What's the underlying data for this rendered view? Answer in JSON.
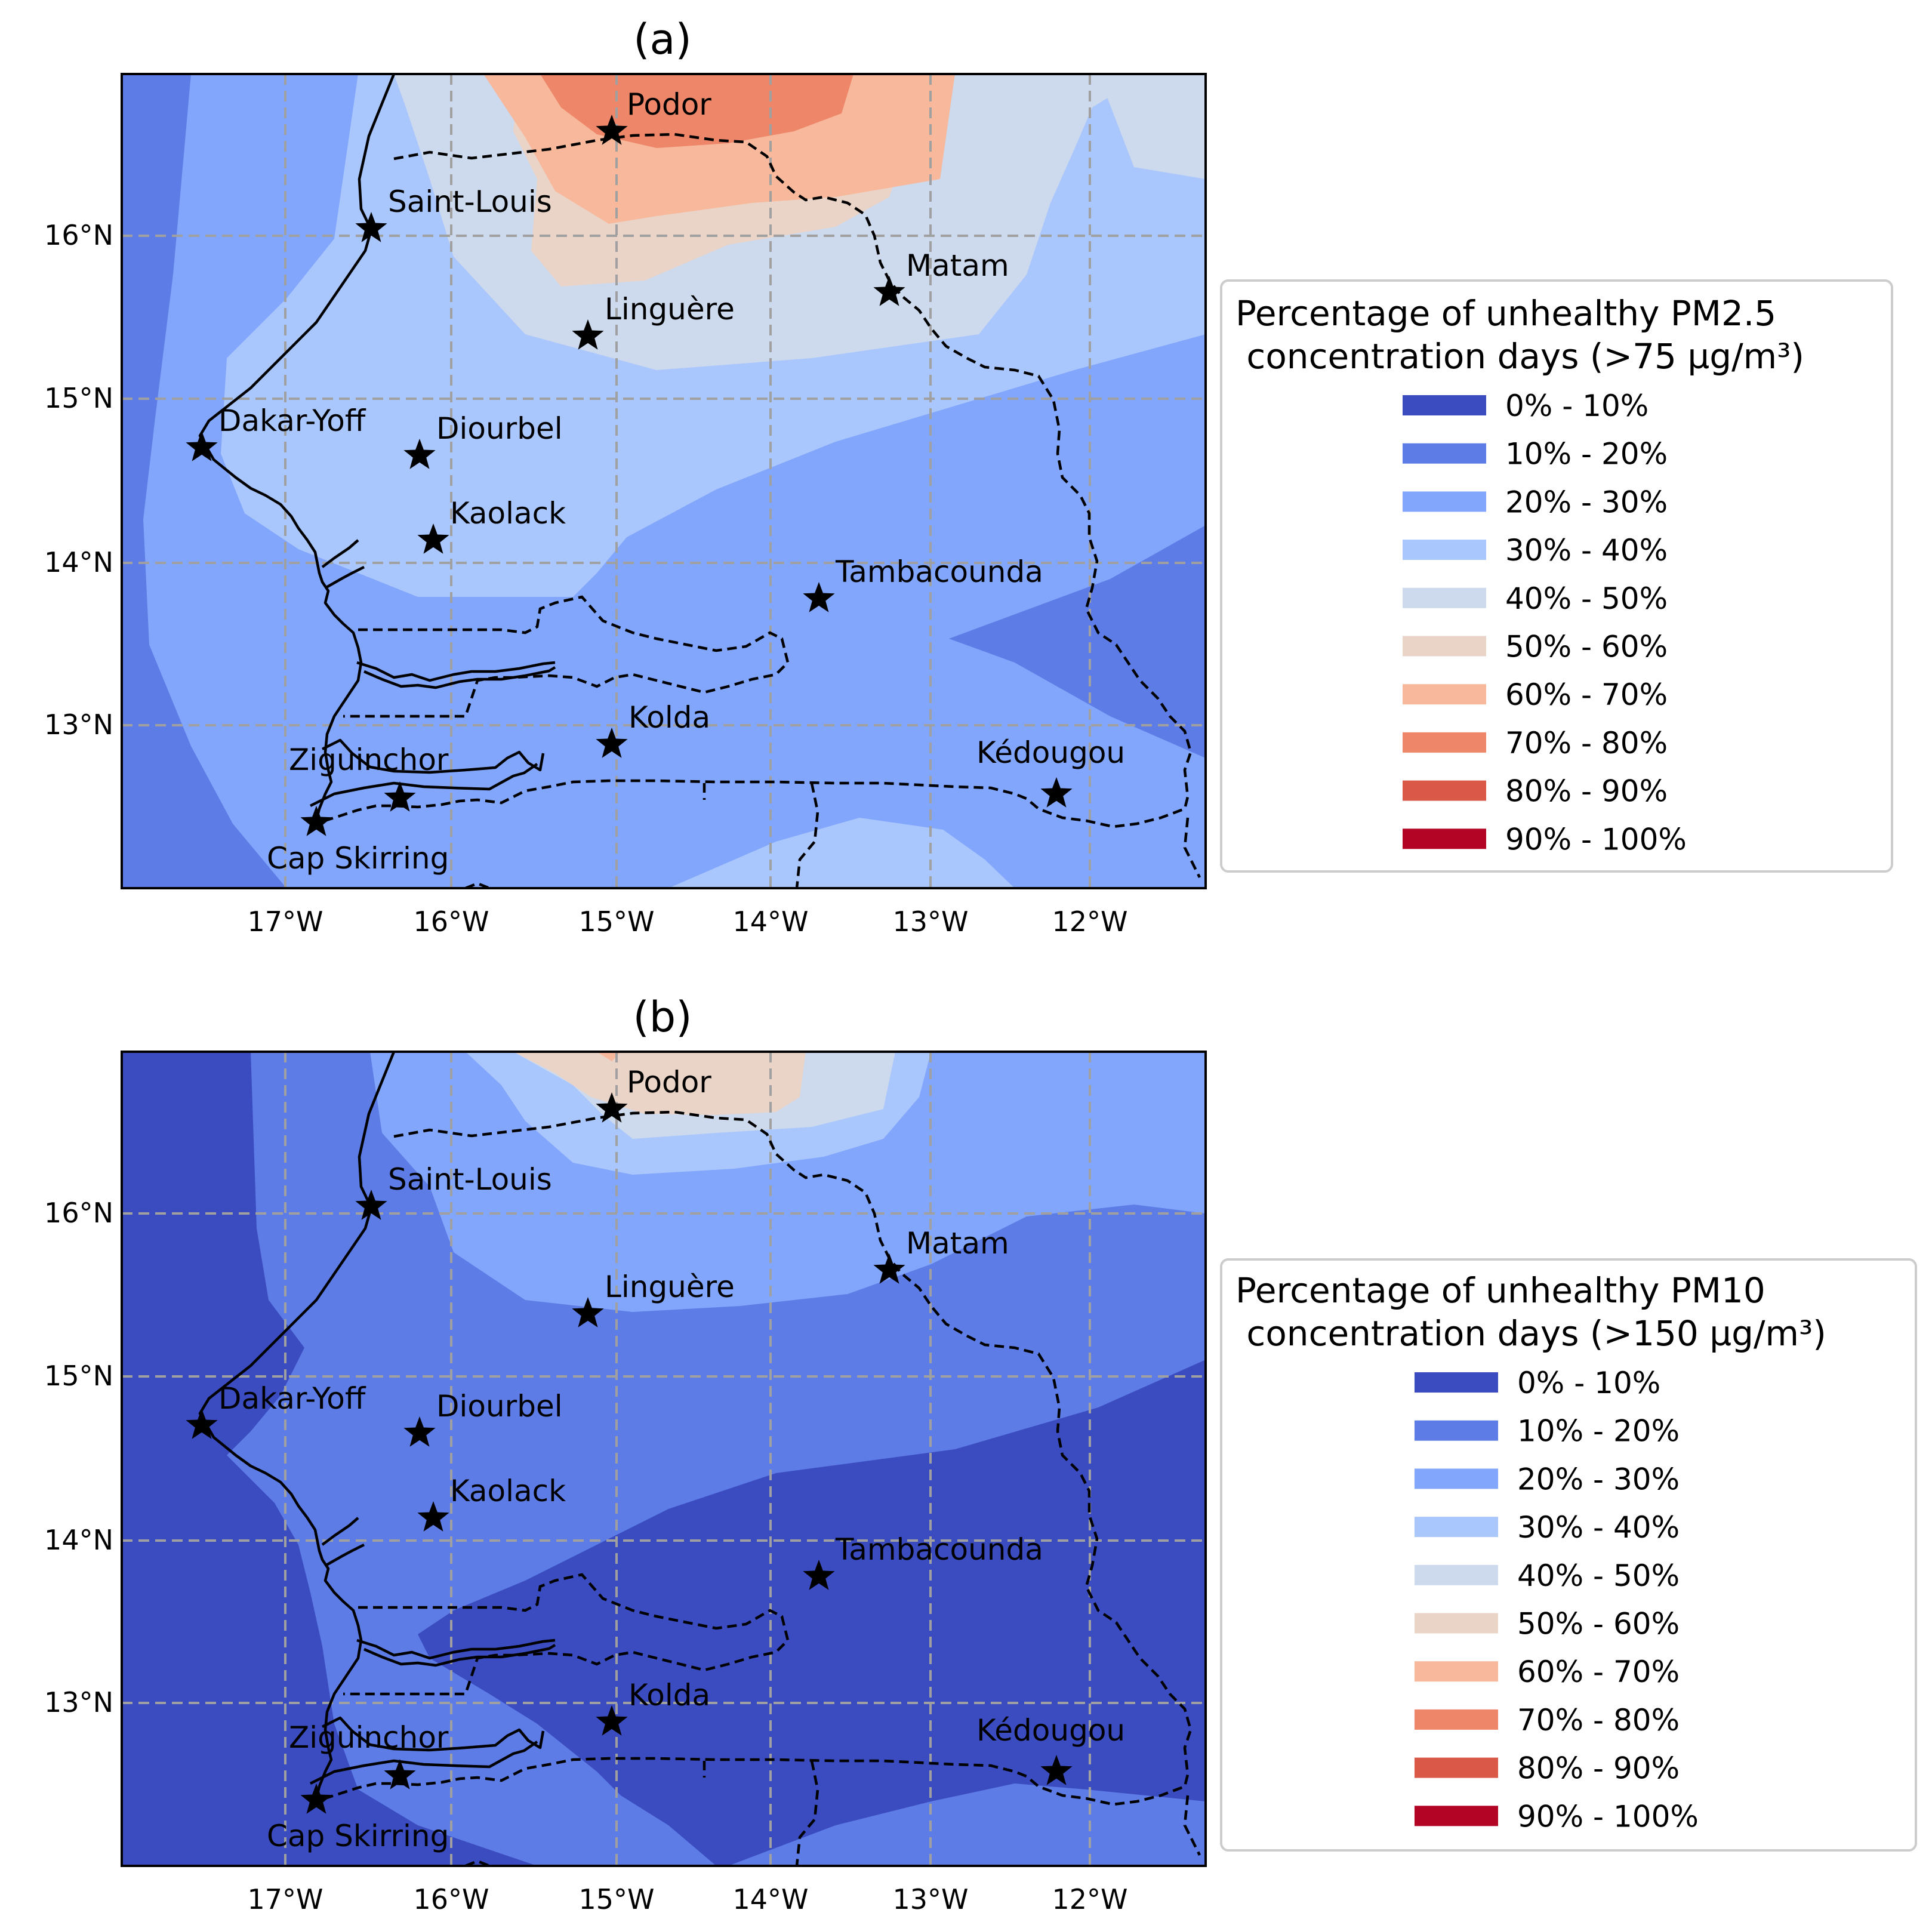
{
  "colors": [
    "#3b4cc0",
    "#5d7ce6",
    "#82a6fb",
    "#aac7fd",
    "#cdd9ec",
    "#ead4c8",
    "#f7b89c",
    "#ee8669",
    "#d95847",
    "#b40426"
  ],
  "lon_ticks": [
    "17°W",
    "16°W",
    "15°W",
    "14°W",
    "13°W",
    "12°W"
  ],
  "lat_ticks": [
    "16°N",
    "15°N",
    "14°N",
    "13°N"
  ],
  "cities": [
    "Podor",
    "Saint-Louis",
    "Matam",
    "Linguère",
    "Dakar-Yoff",
    "Diourbel",
    "Kaolack",
    "Tambacounda",
    "Kolda",
    "Ziguinchor",
    "Kédougou",
    "Cap Skirring"
  ],
  "panels": [
    {
      "title": "(a)",
      "legend_title_1": "Percentage of unhealthy PM2.5",
      "legend_title_2": " concentration days (>75 µg/m³)",
      "legend_items": [
        "0% - 10%",
        "10% - 20%",
        "20% - 30%",
        "30% - 40%",
        "40% - 50%",
        "50% - 60%",
        "60% - 70%",
        "70% - 80%",
        "80% - 90%",
        "90% - 100%"
      ]
    },
    {
      "title": "(b)",
      "legend_title_1": "Percentage of unhealthy PM10",
      "legend_title_2": " concentration days (>150 µg/m³)",
      "legend_items": [
        "0% - 10%",
        "10% - 20%",
        "20% - 30%",
        "30% - 40%",
        "40% - 50%",
        "50% - 60%",
        "60% - 70%",
        "70% - 80%",
        "80% - 90%",
        "90% - 100%"
      ]
    }
  ]
}
